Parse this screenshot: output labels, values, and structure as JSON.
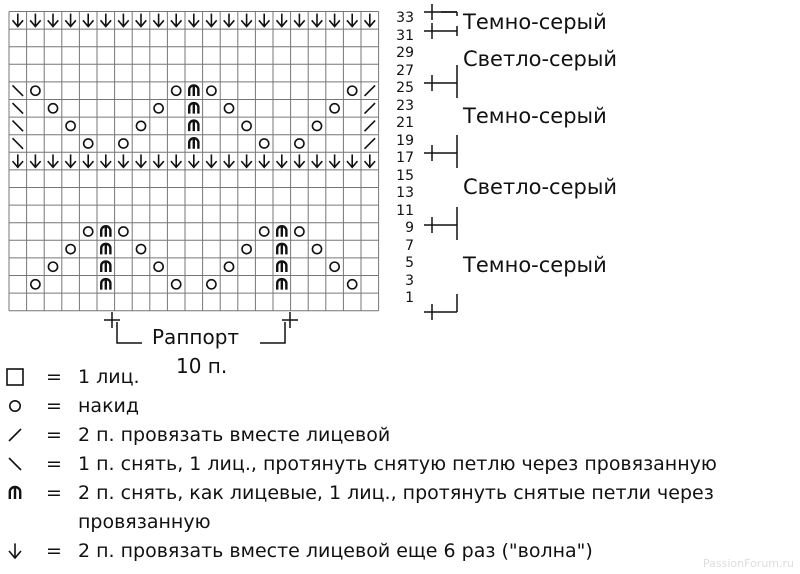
{
  "chart": {
    "columns": 21,
    "symbol_codes": {
      ".": "knit",
      "A": "k2tog-6-times-arrow",
      "O": "yarn-over",
      "M": "centered-double-decrease",
      "S": "ssk-backslash",
      "T": "k2tog-slash"
    },
    "rows": [
      {
        "number": "33",
        "cells": "AAAAAAAAAAAAAAAAAAAAA"
      },
      {
        "number": "31",
        "cells": "....................."
      },
      {
        "number": "29",
        "cells": "....................."
      },
      {
        "number": "27",
        "cells": "....................."
      },
      {
        "number": "25",
        "cells": "SO.......OMO.......OT"
      },
      {
        "number": "23",
        "cells": "S.O.....O.M.O.....O.T"
      },
      {
        "number": "21",
        "cells": "S..O...O..M..O...O..T"
      },
      {
        "number": "19",
        "cells": "S...O.O...M...O.O...T"
      },
      {
        "number": "17",
        "cells": "AAAAAAAAAAAAAAAAAAAAA"
      },
      {
        "number": "15",
        "cells": "....................."
      },
      {
        "number": "13",
        "cells": "....................."
      },
      {
        "number": "11",
        "cells": "....................."
      },
      {
        "number": "9",
        "cells": "....OMO.......OMO...."
      },
      {
        "number": "7",
        "cells": "...O.M.O.....O.M.O..."
      },
      {
        "number": "5",
        "cells": "..O..M..O...O..M..O.."
      },
      {
        "number": "3",
        "cells": ".O...M...O.O...M...O."
      },
      {
        "number": "1",
        "cells": "....................."
      }
    ]
  },
  "color_bands": [
    {
      "label": "Темно-серый"
    },
    {
      "label": "Светло-серый"
    },
    {
      "label": "Темно-серый"
    },
    {
      "label": "Светло-серый"
    },
    {
      "label": "Темно-серый"
    }
  ],
  "rapport": {
    "label": "Раппорт",
    "count": "10 п."
  },
  "legend": [
    {
      "symbol": "knit",
      "eq": "=",
      "text": "1 лиц."
    },
    {
      "symbol": "yarn-over",
      "eq": "=",
      "text": "накид"
    },
    {
      "symbol": "k2tog-slash",
      "eq": "=",
      "text": "2 п. провязать вместе лицевой"
    },
    {
      "symbol": "ssk-backslash",
      "eq": "=",
      "text": "1 п. снять, 1 лиц., протянуть снятую петлю через провязанную"
    },
    {
      "symbol": "centered-double-decrease",
      "eq": "=",
      "text": "2 п. снять, как лицевые, 1 лиц., протянуть снятые петли через"
    },
    {
      "symbol": "",
      "eq": "",
      "text": "провязанную"
    },
    {
      "symbol": "k2tog-6-times-arrow",
      "eq": "=",
      "text": "2 п. провязать вместе лицевой еще 6 раз (\"волна\")"
    }
  ],
  "watermark": "PassionForum.ru"
}
